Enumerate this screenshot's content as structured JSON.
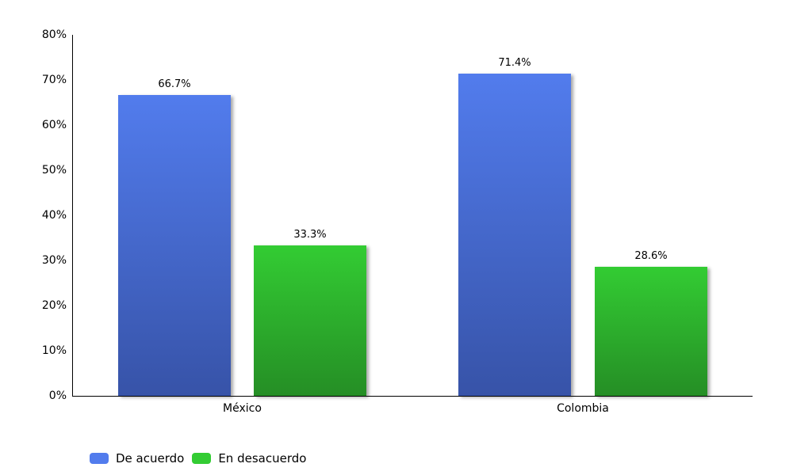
{
  "chart_data": {
    "type": "bar",
    "title": "",
    "xlabel": "",
    "ylabel": "",
    "categories": [
      "México",
      "Colombia"
    ],
    "series": [
      {
        "name": "De acuerdo",
        "values": [
          66.7,
          71.4
        ],
        "color": "#527ced",
        "labels": [
          "66.7%",
          "71.4%"
        ]
      },
      {
        "name": "En desacuerdo",
        "values": [
          33.3,
          28.6
        ],
        "color": "#33cc33",
        "labels": [
          "33.3%",
          "28.6%"
        ]
      }
    ],
    "ylim": [
      0,
      80
    ],
    "yticks": [
      "0%",
      "10%",
      "20%",
      "30%",
      "40%",
      "50%",
      "60%",
      "70%",
      "80%"
    ],
    "grid": false,
    "legend_position": "bottom-left"
  },
  "legend": [
    {
      "label": "De acuerdo",
      "color": "#527ced"
    },
    {
      "label": "En desacuerdo",
      "color": "#33cc33"
    }
  ]
}
